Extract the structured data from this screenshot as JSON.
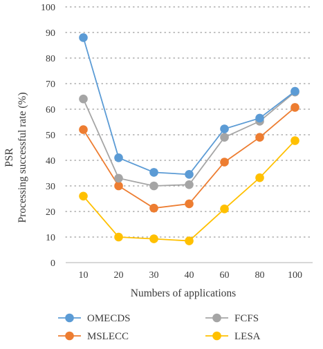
{
  "chart_data": {
    "type": "line",
    "title": "",
    "xlabel": "Numbers of applications",
    "ylabel_lines": [
      "PSR",
      "Processing successful rate (%)"
    ],
    "categories": [
      "10",
      "20",
      "30",
      "40",
      "60",
      "80",
      "100"
    ],
    "ylim": [
      0,
      100
    ],
    "yticks": [
      "0",
      "10",
      "20",
      "30",
      "40",
      "50",
      "60",
      "70",
      "80",
      "90",
      "100"
    ],
    "grid": "horizontal-dotted",
    "legend_position": "bottom",
    "series": [
      {
        "name": "OMECDS",
        "color": "#5B9BD5",
        "values": [
          88,
          41,
          35.3,
          34.5,
          52.3,
          56.5,
          67
        ]
      },
      {
        "name": "FCFS",
        "color": "#A5A5A5",
        "values": [
          64,
          33,
          30,
          30.5,
          49,
          55.3,
          66.7
        ]
      },
      {
        "name": "MSLECC",
        "color": "#ED7D31",
        "values": [
          52,
          30,
          21.3,
          23,
          39.3,
          49,
          60.7
        ]
      },
      {
        "name": "LESA",
        "color": "#FFC000",
        "values": [
          26,
          10,
          9.3,
          8.5,
          21,
          33.2,
          47.7
        ]
      }
    ]
  }
}
